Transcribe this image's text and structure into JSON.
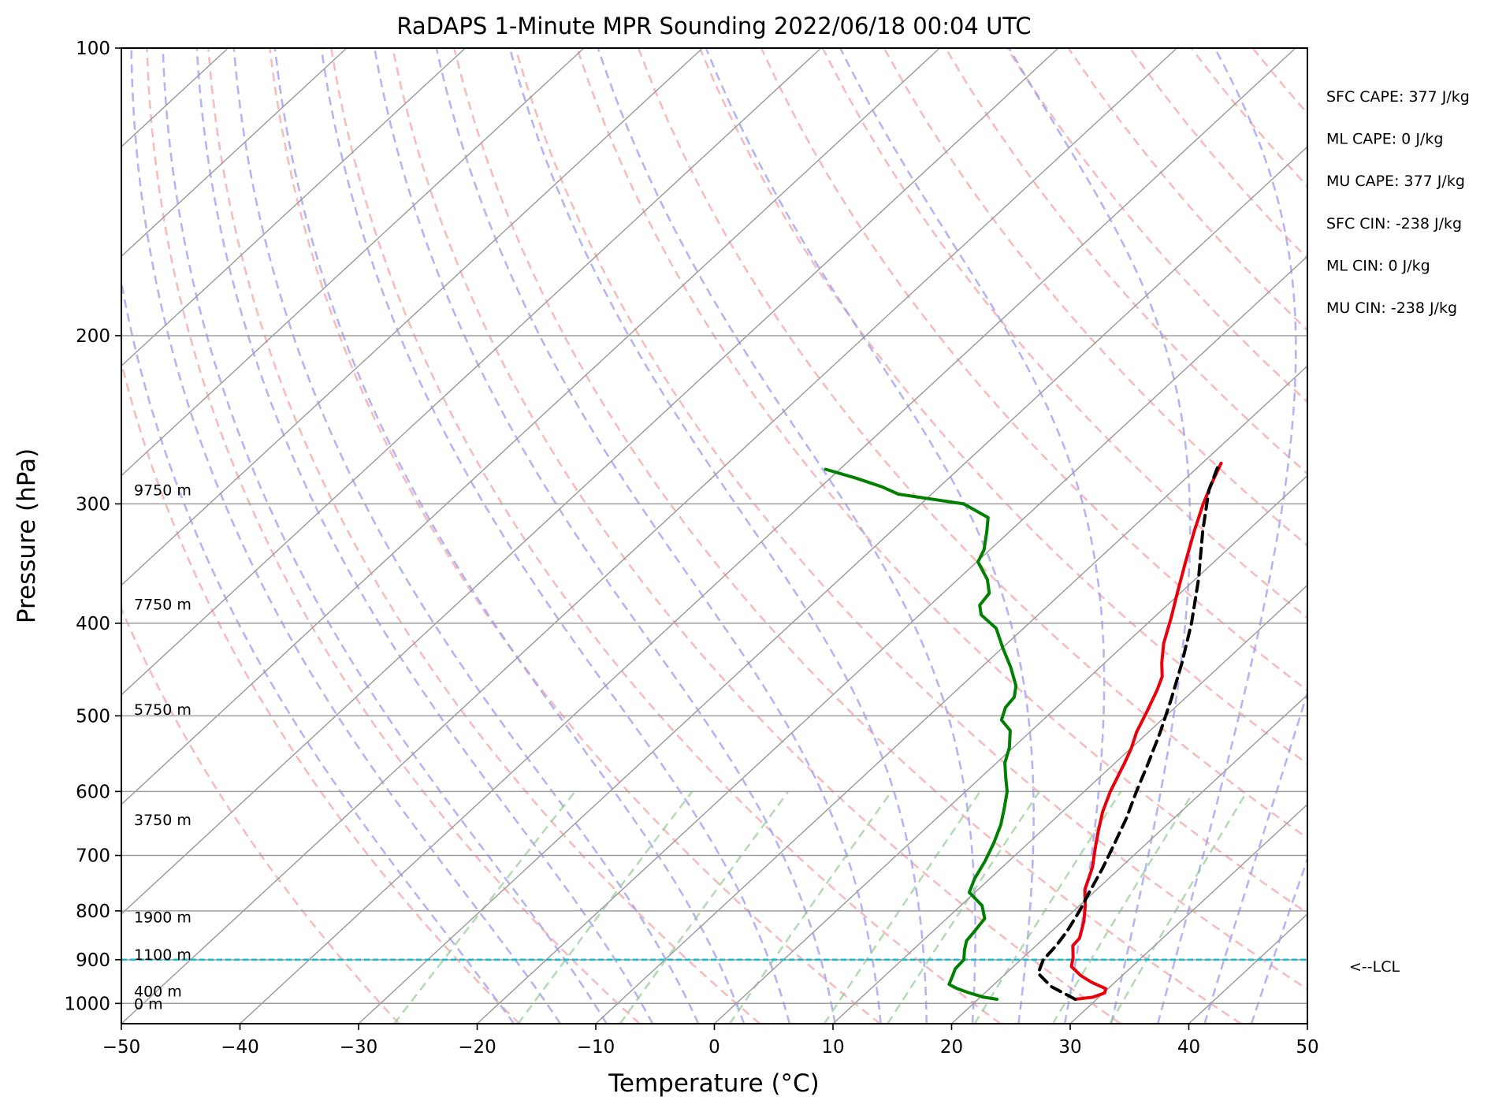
{
  "chart_data": {
    "type": "line",
    "subtype": "skew-t log-p sounding",
    "title": "RaDAPS 1-Minute MPR Sounding 2022/06/18 00:04 UTC",
    "xlabel": "Temperature (°C)",
    "ylabel": "Pressure (hPa)",
    "xlim": [
      -50,
      50
    ],
    "ylim": [
      1050,
      100
    ],
    "y_scale": "log",
    "grid": true,
    "x_ticks": [
      "−50",
      "−40",
      "−30",
      "−20",
      "−10",
      "0",
      "10",
      "20",
      "30",
      "40",
      "50"
    ],
    "x_tick_values": [
      -50,
      -40,
      -30,
      -20,
      -10,
      0,
      10,
      20,
      30,
      40,
      50
    ],
    "y_ticks": [
      "100",
      "200",
      "300",
      "400",
      "500",
      "600",
      "700",
      "800",
      "900",
      "1000"
    ],
    "y_tick_values": [
      100,
      200,
      300,
      400,
      500,
      600,
      700,
      800,
      900,
      1000
    ],
    "colors": {
      "temperature": "#e8000b",
      "dewpoint": "#008000",
      "parcel": "#000000",
      "lcl_line": "#17becf",
      "dry_adiabats": "#f4a6a6",
      "moist_adiabats": "#9c9cf2",
      "mixing_ratio": "#8cc98c",
      "isotherms": "#9e9e9e"
    },
    "series": [
      {
        "key": "temperature",
        "points": [
          [
            990,
            28.2
          ],
          [
            985,
            29.5
          ],
          [
            975,
            30.1
          ],
          [
            965,
            29.8
          ],
          [
            950,
            28.0
          ],
          [
            935,
            26.5
          ],
          [
            915,
            24.9
          ],
          [
            895,
            24.2
          ],
          [
            870,
            23.1
          ],
          [
            855,
            23.0
          ],
          [
            840,
            22.5
          ],
          [
            820,
            21.8
          ],
          [
            790,
            20.5
          ],
          [
            760,
            19.0
          ],
          [
            720,
            17.6
          ],
          [
            690,
            16.2
          ],
          [
            660,
            14.8
          ],
          [
            630,
            13.4
          ],
          [
            600,
            12.2
          ],
          [
            560,
            10.8
          ],
          [
            540,
            10.0
          ],
          [
            520,
            9.0
          ],
          [
            495,
            8.0
          ],
          [
            470,
            6.9
          ],
          [
            455,
            6.1
          ],
          [
            440,
            4.8
          ],
          [
            420,
            3.2
          ],
          [
            395,
            1.5
          ],
          [
            370,
            -0.4
          ],
          [
            345,
            -2.4
          ],
          [
            320,
            -4.5
          ],
          [
            300,
            -6.2
          ],
          [
            285,
            -7.4
          ],
          [
            272,
            -8.4
          ]
        ]
      },
      {
        "key": "dewpoint",
        "points": [
          [
            990,
            21.6
          ],
          [
            985,
            20.3
          ],
          [
            975,
            18.7
          ],
          [
            965,
            17.3
          ],
          [
            955,
            16.2
          ],
          [
            935,
            15.7
          ],
          [
            920,
            15.3
          ],
          [
            900,
            15.2
          ],
          [
            880,
            14.4
          ],
          [
            860,
            13.7
          ],
          [
            840,
            13.5
          ],
          [
            815,
            13.2
          ],
          [
            790,
            11.8
          ],
          [
            765,
            9.5
          ],
          [
            740,
            8.7
          ],
          [
            710,
            8.0
          ],
          [
            680,
            7.1
          ],
          [
            650,
            6.0
          ],
          [
            625,
            4.8
          ],
          [
            600,
            3.5
          ],
          [
            580,
            2.1
          ],
          [
            560,
            0.7
          ],
          [
            540,
            -0.3
          ],
          [
            518,
            -1.8
          ],
          [
            505,
            -3.5
          ],
          [
            490,
            -4.3
          ],
          [
            478,
            -4.5
          ],
          [
            465,
            -5.4
          ],
          [
            445,
            -7.5
          ],
          [
            425,
            -9.9
          ],
          [
            405,
            -12.3
          ],
          [
            392,
            -14.8
          ],
          [
            383,
            -15.8
          ],
          [
            372,
            -16.1
          ],
          [
            360,
            -17.5
          ],
          [
            345,
            -19.9
          ],
          [
            335,
            -20.5
          ],
          [
            320,
            -22.0
          ],
          [
            310,
            -23.1
          ],
          [
            300,
            -26.4
          ],
          [
            293,
            -32.8
          ],
          [
            288,
            -34.8
          ],
          [
            282,
            -37.8
          ],
          [
            276,
            -41.2
          ]
        ]
      },
      {
        "key": "parcel",
        "points": [
          [
            990,
            28.2
          ],
          [
            960,
            25.0
          ],
          [
            930,
            22.7
          ],
          [
            900,
            21.9
          ],
          [
            870,
            21.7
          ],
          [
            840,
            21.3
          ],
          [
            800,
            20.5
          ],
          [
            760,
            19.5
          ],
          [
            720,
            18.5
          ],
          [
            680,
            17.3
          ],
          [
            640,
            16.0
          ],
          [
            600,
            14.4
          ],
          [
            560,
            12.8
          ],
          [
            520,
            11.0
          ],
          [
            480,
            8.9
          ],
          [
            440,
            6.5
          ],
          [
            400,
            3.7
          ],
          [
            360,
            0.3
          ],
          [
            320,
            -3.8
          ],
          [
            290,
            -7.0
          ],
          [
            275,
            -8.3
          ]
        ]
      }
    ],
    "height_labels": [
      {
        "text": "0 m",
        "pressure": 1000
      },
      {
        "text": "400 m",
        "pressure": 970
      },
      {
        "text": "1100 m",
        "pressure": 888
      },
      {
        "text": "1900 m",
        "pressure": 812
      },
      {
        "text": "3750 m",
        "pressure": 642
      },
      {
        "text": "5750 m",
        "pressure": 492
      },
      {
        "text": "7750 m",
        "pressure": 382
      },
      {
        "text": "9750 m",
        "pressure": 290
      }
    ],
    "lcl_pressure": 900,
    "lcl_label": "<--LCL",
    "indices": [
      "SFC CAPE: 377 J/kg",
      "ML CAPE: 0 J/kg",
      "MU CAPE: 377 J/kg",
      "SFC CIN: -238 J/kg",
      "ML CIN: 0 J/kg",
      "MU CIN: -238 J/kg"
    ]
  }
}
